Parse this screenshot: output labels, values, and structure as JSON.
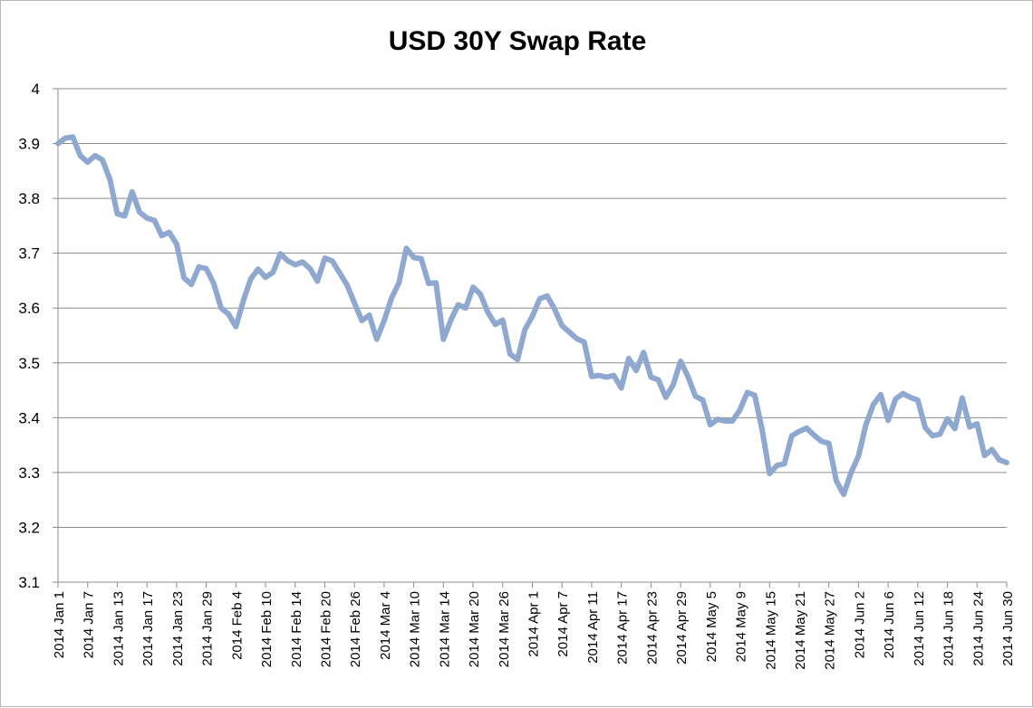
{
  "chart_data": {
    "type": "line",
    "title": "USD 30Y Swap Rate",
    "xlabel": "",
    "ylabel": "",
    "ylim": [
      3.1,
      4.0
    ],
    "yticks": [
      "3.1",
      "3.2",
      "3.3",
      "3.4",
      "3.5",
      "3.6",
      "3.7",
      "3.8",
      "3.9",
      "4"
    ],
    "grid": true,
    "legend": "none",
    "color": "#8FA8D0",
    "xtick_labels": [
      "2014 Jan 1",
      "2014 Jan 7",
      "2014 Jan 13",
      "2014 Jan 17",
      "2014 Jan 23",
      "2014 Jan 29",
      "2014 Feb 4",
      "2014 Feb 10",
      "2014 Feb 14",
      "2014 Feb 20",
      "2014 Feb 26",
      "2014 Mar 4",
      "2014 Mar 10",
      "2014 Mar 14",
      "2014 Mar 20",
      "2014 Mar 26",
      "2014 Apr 1",
      "2014 Apr 7",
      "2014 Apr 11",
      "2014 Apr 17",
      "2014 Apr 23",
      "2014 Apr 29",
      "2014 May 5",
      "2014 May 9",
      "2014 May 15",
      "2014 May 21",
      "2014 May 27",
      "2014 Jun 2",
      "2014 Jun 6",
      "2014 Jun 12",
      "2014 Jun 18",
      "2014 Jun 24",
      "2014 Jun 30"
    ],
    "series": [
      {
        "values": [
          3.9,
          3.91,
          3.912,
          3.878,
          3.866,
          3.878,
          3.87,
          3.835,
          3.772,
          3.768,
          3.812,
          3.775,
          3.764,
          3.76,
          3.732,
          3.738,
          3.717,
          3.655,
          3.643,
          3.675,
          3.672,
          3.645,
          3.6,
          3.589,
          3.566,
          3.613,
          3.653,
          3.671,
          3.656,
          3.665,
          3.699,
          3.686,
          3.679,
          3.684,
          3.672,
          3.649,
          3.691,
          3.686,
          3.664,
          3.642,
          3.609,
          3.577,
          3.587,
          3.543,
          3.577,
          3.618,
          3.646,
          3.709,
          3.692,
          3.69,
          3.645,
          3.646,
          3.543,
          3.578,
          3.606,
          3.6,
          3.638,
          3.625,
          3.592,
          3.57,
          3.578,
          3.516,
          3.506,
          3.561,
          3.585,
          3.617,
          3.622,
          3.598,
          3.568,
          3.556,
          3.544,
          3.538,
          3.475,
          3.477,
          3.474,
          3.477,
          3.454,
          3.508,
          3.486,
          3.519,
          3.474,
          3.469,
          3.437,
          3.46,
          3.503,
          3.475,
          3.439,
          3.432,
          3.387,
          3.397,
          3.394,
          3.394,
          3.414,
          3.446,
          3.441,
          3.378,
          3.298,
          3.313,
          3.316,
          3.367,
          3.375,
          3.381,
          3.368,
          3.357,
          3.353,
          3.285,
          3.26,
          3.3,
          3.33,
          3.387,
          3.424,
          3.442,
          3.395,
          3.434,
          3.444,
          3.437,
          3.432,
          3.382,
          3.367,
          3.37,
          3.398,
          3.38,
          3.436,
          3.383,
          3.389,
          3.331,
          3.342,
          3.323,
          3.318
        ]
      }
    ]
  }
}
